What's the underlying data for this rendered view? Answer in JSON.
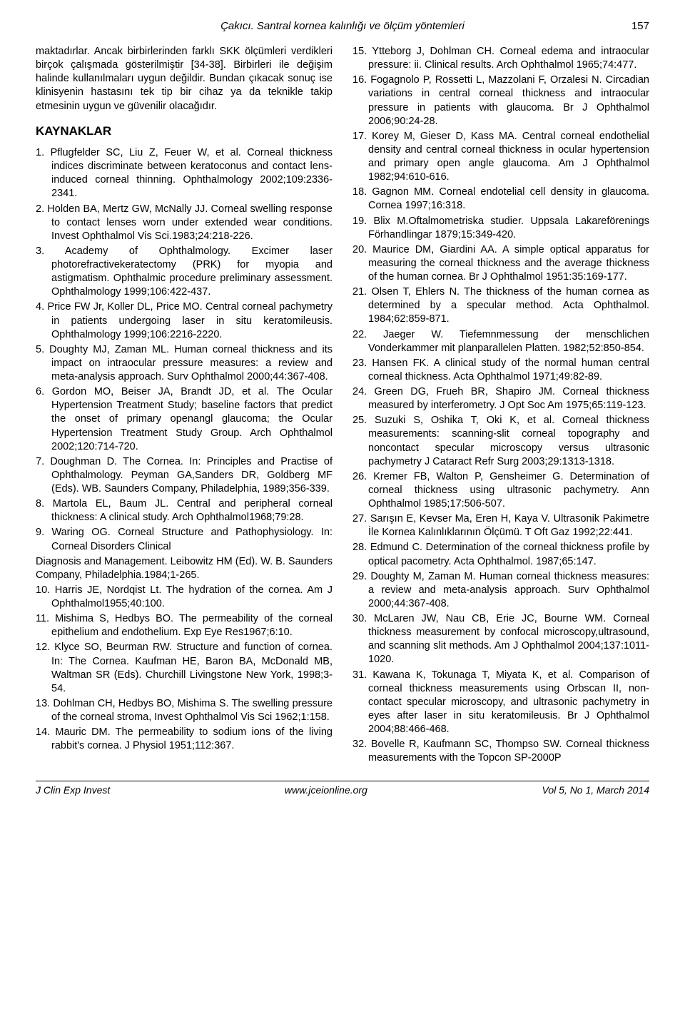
{
  "header": {
    "title": "Çakıcı. Santral kornea kalınlığı ve ölçüm yöntemleri",
    "pagenum": "157"
  },
  "leftCol": {
    "p1": "maktadırlar. Ancak birbirlerinden farklı SKK ölçümleri verdikleri birçok çalışmada gösterilmiştir [34-38]. Birbirleri ile değişim halinde kullanılmaları uygun değildir. Bundan çıkacak sonuç ise klinisyenin hastasını tek tip bir cihaz ya da teknikle takip etmesinin uygun ve güvenilir olacağıdır.",
    "sectionTitle": "KAYNAKLAR",
    "subhead": "Diagnosis and Management. Leibowitz HM (Ed). W. B. Saunders Company, Philadelphia.1984;1-265.",
    "refs": [
      "1. Pflugfelder SC, Liu Z, Feuer W, et al. Corneal thickness indices discriminate between keratoconus and contact lens-induced corneal thinning. Ophthalmology 2002;109:2336-2341.",
      "2. Holden BA, Mertz GW, McNally JJ. Corneal swelling response to contact lenses worn under extended wear conditions. Invest Ophthalmol Vis Sci.1983;24:218-226.",
      "3. Academy of Ophthalmology. Excimer laser photorefractivekeratectomy (PRK) for myopia and astigmatism. Ophthalmic procedure preliminary assessment. Ophthalmology 1999;106:422-437.",
      "4. Price FW Jr, Koller DL, Price MO. Central corneal pachymetry in patients undergoing laser in situ keratomileusis. Ophthalmology 1999;106:2216-2220.",
      "5. Doughty MJ, Zaman ML. Human corneal thickness and its impact on intraocular pressure measures: a review and meta-analysis approach. Surv Ophthalmol 2000;44:367-408.",
      "6. Gordon MO, Beiser JA, Brandt JD, et al. The Ocular Hypertension Treatment Study; baseline factors that predict the onset of primary openangl glaucoma; the Ocular Hypertension Treatment Study Group. Arch Ophthalmol 2002;120:714-720.",
      "7. Doughman D. The Cornea. In: Principles and Practise of Ophthalmology. Peyman GA,Sanders DR, Goldberg MF (Eds). WB. Saunders Company, Philadelphia, 1989;356-339.",
      "8. Martola EL, Baum JL. Central and peripheral corneal thickness: A clinical study. Arch Ophthalmol1968;79:28.",
      "9. Waring OG. Corneal Structure and Pathophysiology. In: Corneal Disorders Clinical"
    ],
    "refs2": [
      "10. Harris JE, Nordqist Lt. The hydration of the cornea. Am J Ophthalmol1955;40:100.",
      "11. Mishima S, Hedbys BO. The permeability of the corneal epithelium and endothelium. Exp Eye Res1967;6:10.",
      "12. Klyce SO, Beurman RW. Structure and function of cornea. In: The Cornea. Kaufman HE, Baron BA, McDonald MB, Waltman SR (Eds). Churchill Livingstone New York, 1998;3-54.",
      "13. Dohlman CH, Hedbys BO, Mishima S. The swelling pressure of the corneal stroma, Invest Ophthalmol Vis Sci 1962;1:158.",
      "14. Mauric DM. The permeability to sodium ions of the living rabbit's cornea. J Physiol 1951;112:367."
    ]
  },
  "rightCol": {
    "refs": [
      "15. Ytteborg J, Dohlman CH. Corneal edema and intraocular pressure: ii. Clinical results. Arch Ophthalmol 1965;74:477.",
      "16. Fogagnolo P, Rossetti L, Mazzolani F, Orzalesi N. Circadian variations in central corneal thickness and intraocular pressure in patients with glaucoma. Br J Ophthalmol 2006;90:24-28.",
      "17. Korey M, Gieser D, Kass MA. Central corneal endothelial density and central corneal thickness in ocular hypertension and primary open angle glaucoma. Am J Ophthalmol 1982;94:610-616.",
      "18. Gagnon MM. Corneal endotelial cell density in glaucoma. Cornea 1997;16:318.",
      "19. Blix M.Oftalmometriska studier. Uppsala Lakareförenings Förhandlingar 1879;15:349-420.",
      "20. Maurice DM, Giardini AA. A simple optical apparatus for measuring the corneal thickness and the average thickness of the human cornea. Br J Ophthalmol 1951:35:169-177.",
      "21. Olsen T, Ehlers N. The thickness of the human cornea as determined by a specular method. Acta Ophthalmol. 1984;62:859-871.",
      "22. Jaeger W. Tiefemnmessung der menschlichen Vonderkammer mit planparallelen Platten. 1982;52:850-854.",
      "23. Hansen FK. A clinical study of the normal human central corneal thickness. Acta Ophthalmol 1971;49:82-89.",
      "24. Green DG, Frueh BR, Shapiro JM. Corneal thickness measured by interferometry. J Opt Soc Am 1975;65:119-123.",
      "25. Suzuki S, Oshika T, Oki K, et al. Corneal thickness measurements: scanning-slit corneal topography and noncontact specular microscopy versus ultrasonic pachymetry J Cataract Refr Surg 2003;29:1313-1318.",
      "26. Kremer FB, Walton P, Gensheimer G. Determination of corneal thickness using ultrasonic pachymetry. Ann Ophthalmol 1985;17:506-507.",
      "27. Sarışın E, Kevser Ma, Eren H, Kaya V. Ultrasonik Pakimetre İle Kornea Kalınlıklarının Ölçümü. T Oft Gaz 1992;22:441.",
      "28. Edmund C. Determination of the corneal thickness profile by optical pacometry. Acta Ophthalmol. 1987;65:147.",
      "29. Doughty M, Zaman M. Human corneal thickness measures: a review and meta-analysis approach. Surv Ophthalmol 2000;44:367-408.",
      "30. McLaren JW, Nau CB, Erie JC, Bourne WM. Corneal thickness measurement by confocal microscopy,ultrasound, and scanning slit methods. Am J Ophthalmol 2004;137:1011-1020.",
      "31. Kawana K, Tokunaga T, Miyata K, et al. Comparison of corneal thickness measurements using Orbscan II, non-contact specular microscopy, and ultrasonic pachymetry in eyes after laser in situ keratomileusis. Br J Ophthalmol 2004;88:466-468.",
      "32. Bovelle R, Kaufmann SC, Thompso SW. Corneal thickness measurements with the Topcon SP-2000P"
    ]
  },
  "footer": {
    "left": "J Clin Exp Invest",
    "center": "www.jceionline.org",
    "right": "Vol 5, No 1, March 2014"
  }
}
